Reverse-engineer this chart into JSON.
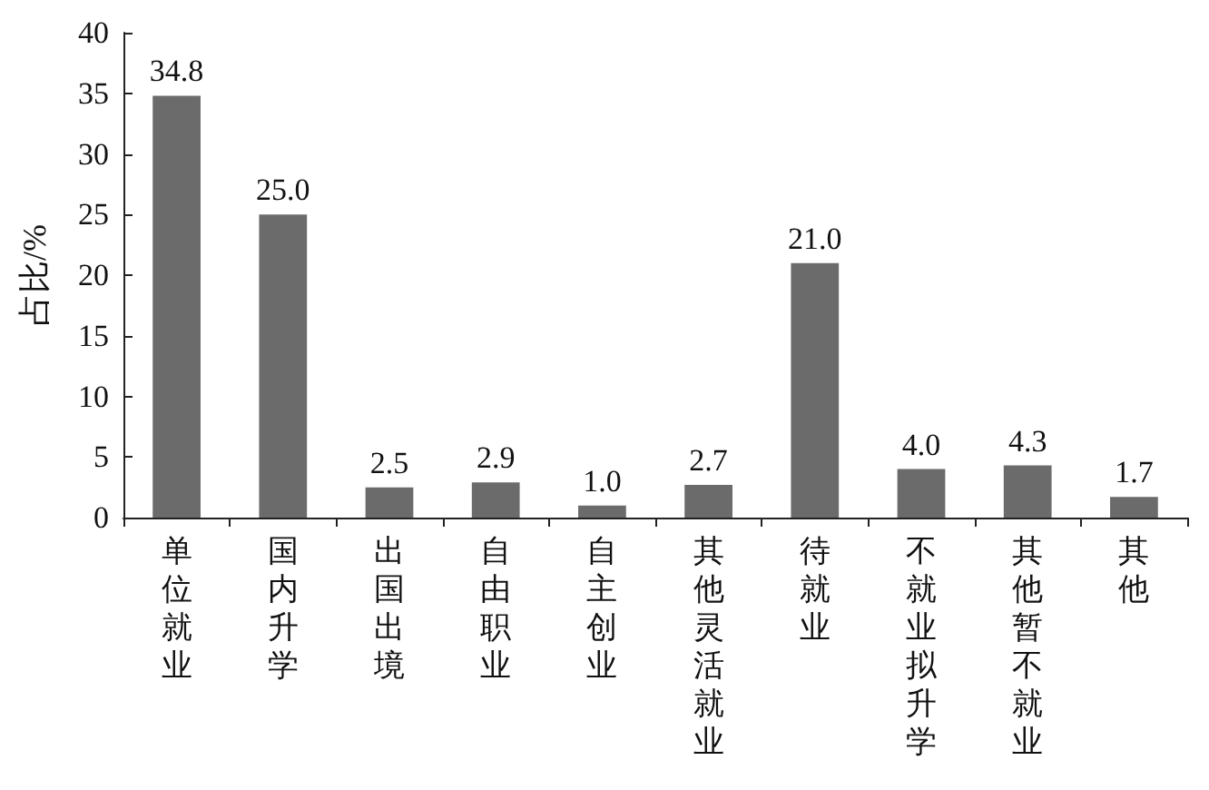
{
  "chart_data": {
    "type": "bar",
    "ylabel": "占比/%",
    "categories": [
      "单位就业",
      "国内升学",
      "出国出境",
      "自由职业",
      "自主创业",
      "其他灵活就业",
      "待就业",
      "不就业拟升学",
      "其他暂不就业",
      "其他"
    ],
    "values": [
      34.8,
      25.0,
      2.5,
      2.9,
      1.0,
      2.7,
      21.0,
      4.0,
      4.3,
      1.7
    ],
    "value_labels": [
      "34.8",
      "25.0",
      "2.5",
      "2.9",
      "1.0",
      "2.7",
      "21.0",
      "4.0",
      "4.3",
      "1.7"
    ],
    "color": "#6b6b6b",
    "ylim": [
      0,
      40
    ],
    "yticks": [
      0,
      5,
      10,
      15,
      20,
      25,
      30,
      35,
      40
    ],
    "grid": false
  }
}
